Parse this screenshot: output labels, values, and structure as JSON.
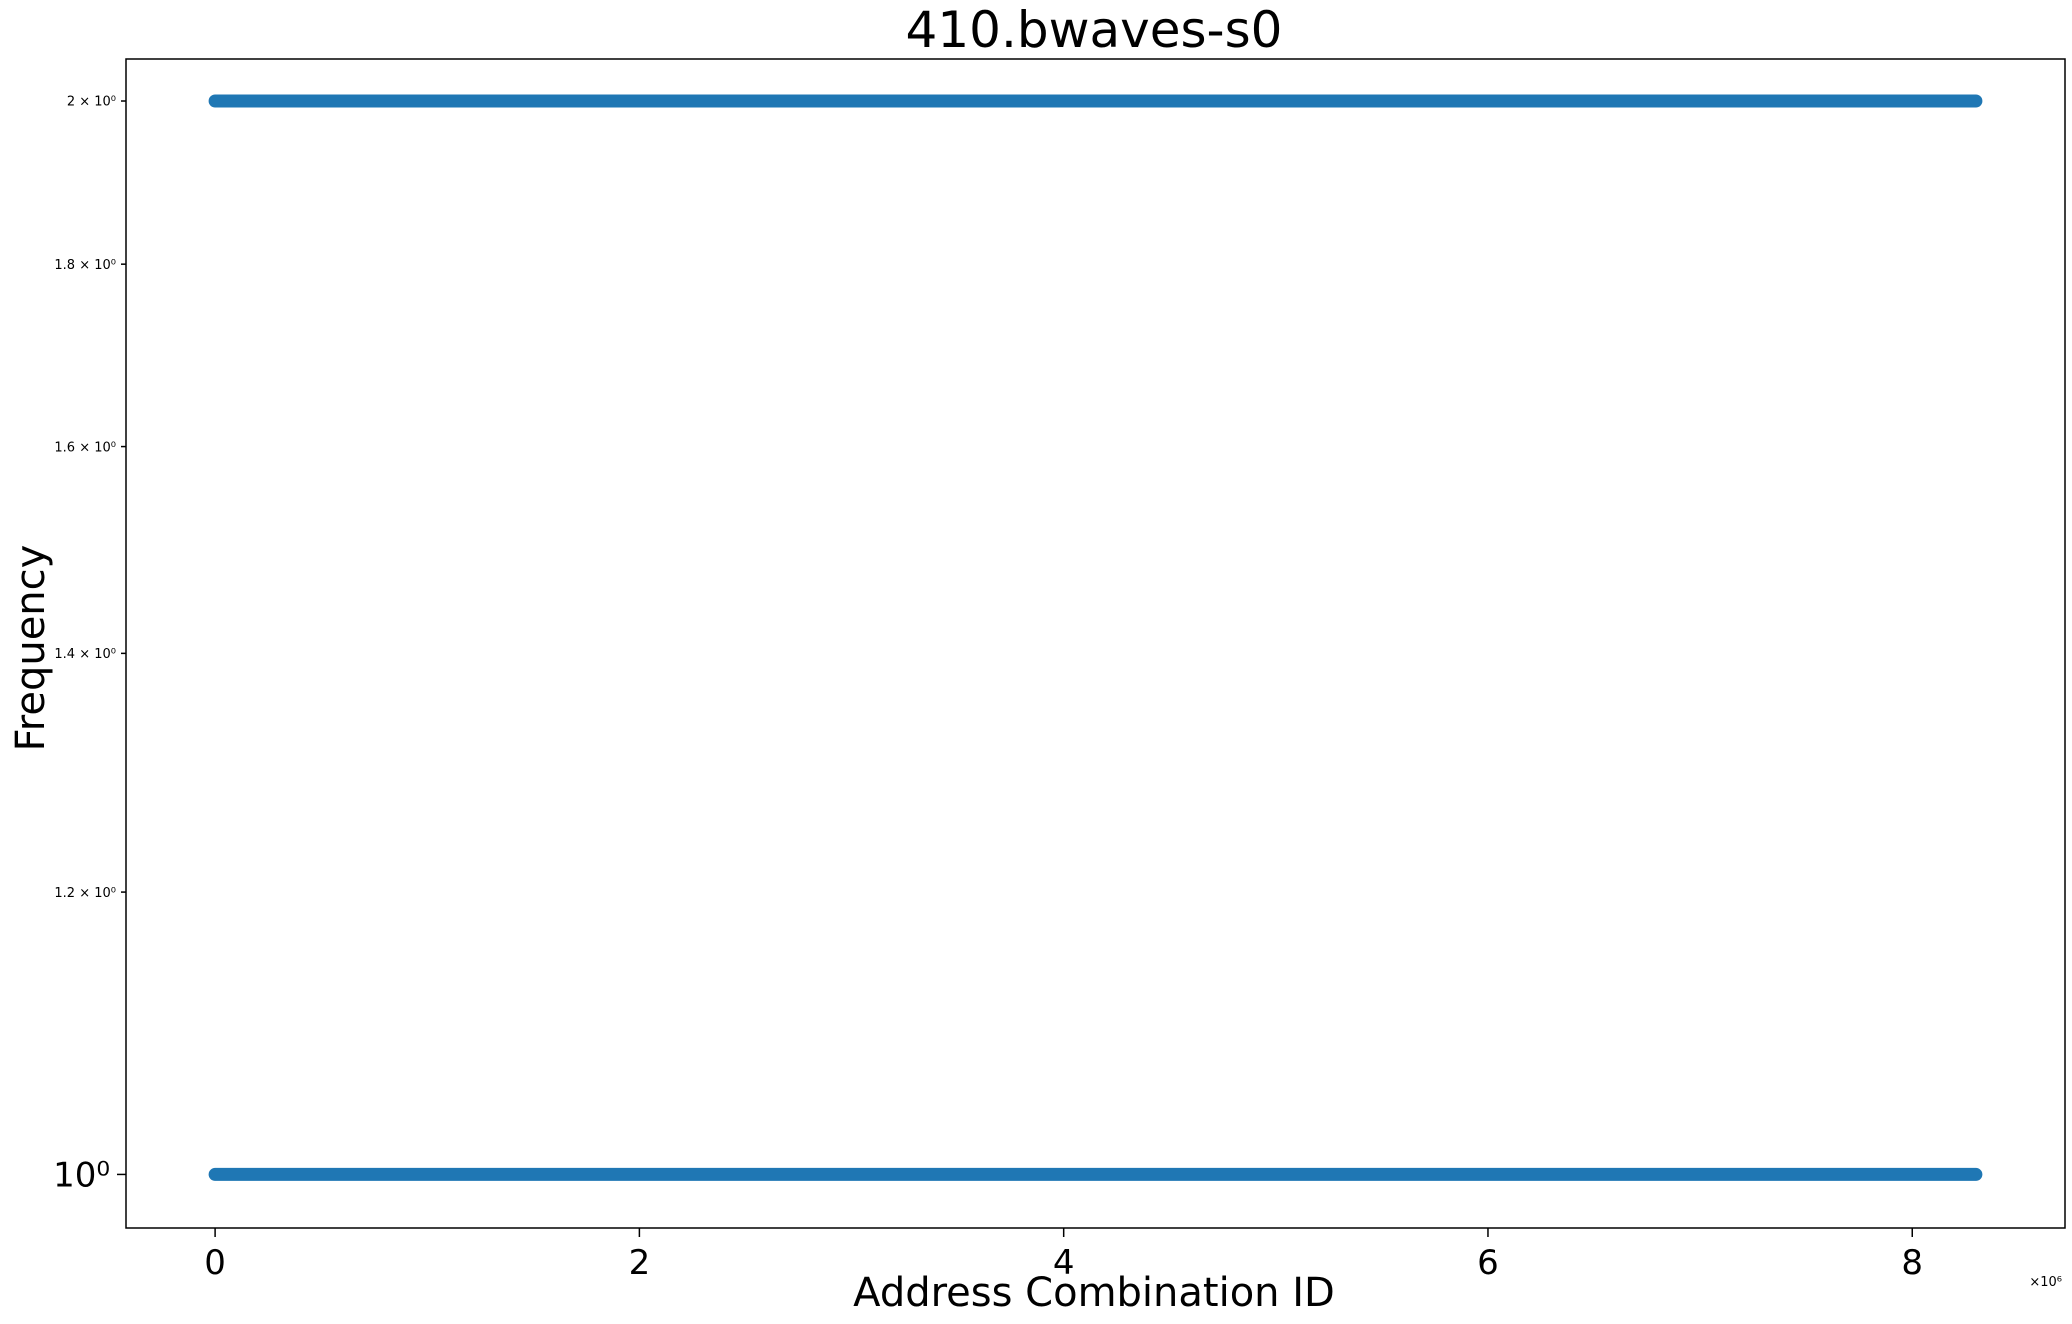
{
  "chart_data": {
    "type": "scatter",
    "title": "410.bwaves-s0",
    "xlabel": "Address Combination ID",
    "ylabel": "Frequency",
    "x_offset_label": "×10⁶",
    "x_scale": "linear",
    "y_scale": "log",
    "xlim": [
      -0.42,
      8.72
    ],
    "ylim": [
      0.966,
      2.055
    ],
    "x_ticks": [
      {
        "value": 0,
        "label": "0"
      },
      {
        "value": 2,
        "label": "2"
      },
      {
        "value": 4,
        "label": "4"
      },
      {
        "value": 6,
        "label": "6"
      },
      {
        "value": 8,
        "label": "8"
      }
    ],
    "y_ticks": [
      {
        "value": 1,
        "label": "10⁰",
        "major": true
      },
      {
        "value": 1.2,
        "label": "1.2 × 10⁰",
        "major": false
      },
      {
        "value": 1.4,
        "label": "1.4 × 10⁰",
        "major": false
      },
      {
        "value": 1.6,
        "label": "1.6 × 10⁰",
        "major": false
      },
      {
        "value": 1.8,
        "label": "1.8 × 10⁰",
        "major": false
      },
      {
        "value": 2,
        "label": "2 × 10⁰",
        "major": false
      }
    ],
    "series": [
      {
        "color": "#1f77b4",
        "bands": [
          {
            "y": 2,
            "x_start": 0,
            "x_end": 8.3
          },
          {
            "y": 1,
            "x_start": 0,
            "x_end": 8.3
          }
        ]
      }
    ],
    "grid": false,
    "legend": "none"
  }
}
